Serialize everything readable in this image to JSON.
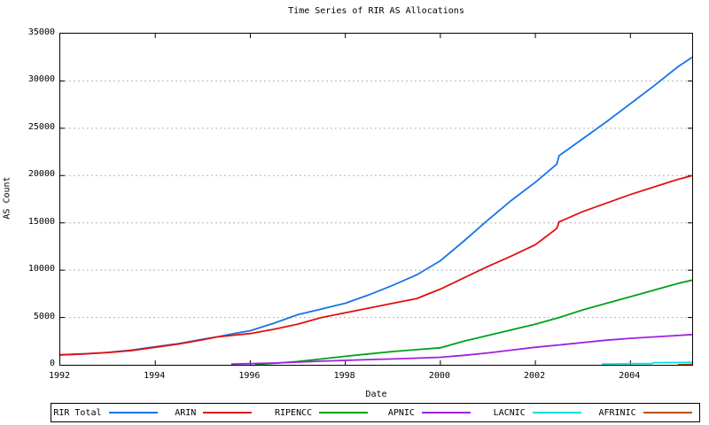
{
  "title": "Time Series of RIR AS Allocations",
  "axes": {
    "x_label": "Date",
    "y_label": "AS Count",
    "x_tick_labels": [
      "1992",
      "1994",
      "1996",
      "1998",
      "2000",
      "2002",
      "2004"
    ],
    "y_tick_labels": [
      "0",
      "5000",
      "10000",
      "15000",
      "20000",
      "25000",
      "30000",
      "35000"
    ]
  },
  "colors": {
    "grid": "#b4b4b4",
    "border": "#000000",
    "background": "#ffffff"
  },
  "legend": {
    "position": "bottom",
    "entries": [
      "RIR Total",
      "ARIN",
      "RIPENCC",
      "APNIC",
      "LACNIC",
      "AFRINIC"
    ]
  },
  "chart_data": {
    "type": "line",
    "title": "Time Series of RIR AS Allocations",
    "xlabel": "Date",
    "ylabel": "AS Count",
    "xlim": [
      1992,
      2005.3
    ],
    "ylim": [
      0,
      35000
    ],
    "x_tick_values": [
      1992,
      1994,
      1996,
      1998,
      2000,
      2002,
      2004
    ],
    "y_tick_values": [
      0,
      5000,
      10000,
      15000,
      20000,
      25000,
      30000,
      35000
    ],
    "grid": "horizontal-dashed",
    "legend_position": "bottom",
    "series": [
      {
        "name": "RIR Total",
        "color": "#1874e8",
        "x": [
          1992,
          1992.5,
          1993,
          1993.5,
          1994,
          1994.5,
          1995,
          1995.3,
          1995.6,
          1996,
          1996.5,
          1997,
          1997.5,
          1998,
          1998.5,
          1999,
          1999.5,
          2000,
          2000.5,
          2001,
          2001.5,
          2002,
          2002.45,
          2002.5,
          2003,
          2003.5,
          2004,
          2004.5,
          2005,
          2005.3
        ],
        "y": [
          1050,
          1150,
          1300,
          1550,
          1900,
          2250,
          2700,
          2950,
          3250,
          3600,
          4400,
          5300,
          5900,
          6500,
          7400,
          8400,
          9500,
          11000,
          13100,
          15300,
          17400,
          19300,
          21200,
          22100,
          23900,
          25700,
          27600,
          29500,
          31500,
          32500
        ]
      },
      {
        "name": "ARIN",
        "color": "#e01010",
        "x": [
          1992,
          1992.5,
          1993,
          1993.5,
          1994,
          1994.5,
          1995,
          1995.3,
          1995.6,
          1996,
          1996.5,
          1997,
          1997.5,
          1998,
          1998.5,
          1999,
          1999.5,
          2000,
          2000.5,
          2001,
          2001.5,
          2002,
          2002.45,
          2002.5,
          2003,
          2003.5,
          2004,
          2004.5,
          2005,
          2005.3
        ],
        "y": [
          1050,
          1150,
          1300,
          1500,
          1850,
          2200,
          2650,
          2950,
          3100,
          3300,
          3750,
          4300,
          5000,
          5500,
          6000,
          6500,
          7000,
          8000,
          9200,
          10400,
          11500,
          12700,
          14400,
          15100,
          16200,
          17100,
          18000,
          18800,
          19600,
          20000
        ]
      },
      {
        "name": "RIPENCC",
        "color": "#00a018",
        "x": [
          1996.1,
          1996.5,
          1997,
          1997.5,
          1998,
          1998.5,
          1999,
          1999.5,
          2000,
          2000.5,
          2001,
          2001.5,
          2002,
          2002.5,
          2003,
          2003.5,
          2004,
          2004.5,
          2005,
          2005.3
        ],
        "y": [
          30,
          150,
          350,
          620,
          900,
          1150,
          1400,
          1600,
          1800,
          2500,
          3100,
          3700,
          4300,
          5000,
          5800,
          6500,
          7200,
          7900,
          8600,
          8950
        ]
      },
      {
        "name": "APNIC",
        "color": "#a020e0",
        "x": [
          1995.6,
          1996,
          1996.5,
          1997,
          1997.5,
          1998,
          1998.5,
          1999,
          1999.5,
          2000,
          2000.5,
          2001,
          2001.5,
          2002,
          2002.5,
          2003,
          2003.5,
          2004,
          2004.5,
          2005,
          2005.3
        ],
        "y": [
          80,
          120,
          190,
          280,
          380,
          470,
          550,
          620,
          700,
          800,
          1000,
          1250,
          1550,
          1850,
          2100,
          2350,
          2600,
          2800,
          2950,
          3100,
          3200
        ]
      },
      {
        "name": "LACNIC",
        "color": "#00e0e8",
        "x": [
          2003.4,
          2003.8,
          2004.2,
          2004.45,
          2004.5,
          2005,
          2005.3
        ],
        "y": [
          80,
          100,
          120,
          130,
          220,
          235,
          250
        ]
      },
      {
        "name": "AFRINIC",
        "color": "#b85010",
        "x": [
          2005.0,
          2005.3
        ],
        "y": [
          10,
          30
        ]
      }
    ]
  }
}
